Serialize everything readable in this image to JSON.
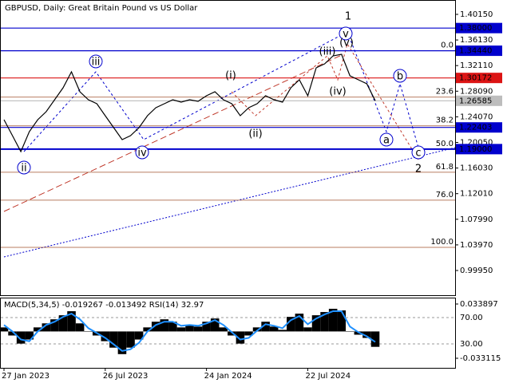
{
  "chart_data": {
    "type": "line",
    "title": "GBPUSD, Daily:  Great Britain Pound vs US Dollar",
    "categories": [
      "27 Jan 2023",
      null,
      null,
      null,
      null,
      null,
      null,
      null,
      null,
      null,
      null,
      null,
      "26 Jul 2023",
      null,
      null,
      null,
      null,
      null,
      null,
      null,
      null,
      null,
      null,
      null,
      "24 Jan 2024",
      null,
      null,
      null,
      null,
      null,
      null,
      null,
      null,
      null,
      null,
      null,
      "22 Jul 2024",
      null,
      null,
      null,
      null,
      null,
      null,
      null,
      null
    ],
    "values": [
      1.2362,
      1.2111,
      1.1861,
      1.2174,
      1.2362,
      1.2487,
      1.2675,
      1.2863,
      1.3113,
      1.28,
      1.2675,
      1.2612,
      1.2425,
      1.2237,
      1.2049,
      1.2111,
      1.2237,
      1.2425,
      1.255,
      1.2612,
      1.2675,
      1.2637,
      1.2675,
      1.265,
      1.2738,
      1.28,
      1.2675,
      1.2612,
      1.2425,
      1.255,
      1.2612,
      1.2738,
      1.2675,
      1.2637,
      1.2863,
      1.2988,
      1.2738,
      1.3176,
      1.3239,
      1.3364,
      1.3389,
      1.3051,
      1.2988,
      1.2925,
      1.2659
    ],
    "color": "#000000",
    "ylim": [
      0.96067,
      1.42404
    ],
    "yticks": [
      {
        "value": 1.4015,
        "label": "1.40150"
      },
      {
        "value": 1.3613,
        "label": "1.36130"
      },
      {
        "value": 1.3211,
        "label": "1.32110"
      },
      {
        "value": 1.2809,
        "label": "1.28090"
      },
      {
        "value": 1.2407,
        "label": "1.24070"
      },
      {
        "value": 1.2005,
        "label": "1.20050"
      },
      {
        "value": 1.1603,
        "label": "1.16030"
      },
      {
        "value": 1.1201,
        "label": "1.12010"
      },
      {
        "value": 1.0799,
        "label": "1.07990"
      },
      {
        "value": 1.0397,
        "label": "1.03970"
      },
      {
        "value": 0.9995,
        "label": "0.99950"
      }
    ],
    "levels": [
      {
        "value": 1.38,
        "label": "1.38000",
        "color": "#0000cd"
      },
      {
        "value": 1.3444,
        "label": "1.34440",
        "color": "#0000cd"
      },
      {
        "value": 1.30172,
        "label": "1.30172",
        "color": "#dc1414"
      },
      {
        "value": 1.26585,
        "label": "1.26585",
        "color": "#bdbdbd"
      },
      {
        "value": 1.22403,
        "label": "1.22403",
        "color": "#0000cd"
      },
      {
        "value": 1.19,
        "label": "1.19000",
        "color": "#0000cd"
      }
    ],
    "fib_color": "#a0522d",
    "fib_levels": [
      {
        "value": 1.3444,
        "label": "0.0"
      },
      {
        "value": 1.2716,
        "label": "23.6"
      },
      {
        "value": 1.2265,
        "label": "38.2"
      },
      {
        "value": 1.1901,
        "label": "50.0"
      },
      {
        "value": 1.1537,
        "label": "61.8"
      },
      {
        "value": 1.1099,
        "label": "76.0"
      },
      {
        "value": 1.0358,
        "label": "100.0"
      }
    ],
    "annotations": [
      {
        "text": "1",
        "color": "#c0392b"
      },
      {
        "text": "v",
        "color": "#0000cd",
        "circled": true
      },
      {
        "text": "(v)",
        "color": "#c0392b"
      },
      {
        "text": "(iii)",
        "color": "#c0392b"
      },
      {
        "text": "(iv)",
        "color": "#c0392b"
      },
      {
        "text": "(i)",
        "color": "#c0392b"
      },
      {
        "text": "(ii)",
        "color": "#c0392b"
      },
      {
        "text": "iii",
        "color": "#0000cd",
        "circled": true
      },
      {
        "text": "iv",
        "color": "#0000cd",
        "circled": true
      },
      {
        "text": "ii",
        "color": "#0000cd",
        "circled": true
      },
      {
        "text": "b",
        "color": "#0000cd",
        "circled": true
      },
      {
        "text": "a",
        "color": "#0000cd",
        "circled": true
      },
      {
        "text": "c",
        "color": "#0000cd",
        "circled": true
      },
      {
        "text": "2",
        "color": "#c0392b"
      }
    ],
    "indicator": {
      "title": "MACD(5,34,5) -0.019267 -0.013492 RSI(14) 32.97",
      "type": "bar",
      "color": "#000000",
      "values": [
        0.005,
        -0.005,
        -0.015,
        -0.01,
        0.005,
        0.01,
        0.015,
        0.02,
        0.025,
        0.01,
        0.0,
        -0.005,
        -0.012,
        -0.02,
        -0.028,
        -0.02,
        -0.01,
        0.005,
        0.012,
        0.015,
        0.012,
        0.005,
        0.008,
        0.006,
        0.012,
        0.016,
        0.005,
        -0.005,
        -0.015,
        -0.005,
        0.005,
        0.012,
        0.006,
        0.002,
        0.018,
        0.022,
        0.005,
        0.02,
        0.024,
        0.028,
        0.026,
        0.0,
        -0.004,
        -0.008,
        -0.019
      ],
      "signal": {
        "color": "#1e90ff",
        "values": [
          0.008,
          0.0,
          -0.01,
          -0.012,
          0.0,
          0.008,
          0.012,
          0.018,
          0.022,
          0.015,
          0.004,
          -0.002,
          -0.008,
          -0.016,
          -0.024,
          -0.022,
          -0.014,
          0.0,
          0.008,
          0.012,
          0.012,
          0.007,
          0.008,
          0.007,
          0.01,
          0.014,
          0.008,
          -0.001,
          -0.01,
          -0.008,
          0.001,
          0.009,
          0.007,
          0.004,
          0.014,
          0.019,
          0.009,
          0.016,
          0.021,
          0.025,
          0.025,
          0.006,
          -0.001,
          -0.006,
          -0.013
        ]
      },
      "ylim": [
        -0.04494,
        0.0408
      ],
      "yticks": [
        0.033897,
        -0.033115
      ],
      "levels": [
        {
          "value": 70,
          "label": "70.00"
        },
        {
          "value": 30,
          "label": "30.00"
        }
      ]
    }
  }
}
